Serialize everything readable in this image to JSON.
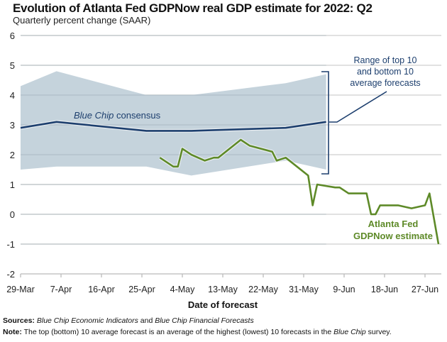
{
  "title": "Evolution of Atlanta Fed GDPNow real GDP estimate for 2022: Q2",
  "subtitle": "Quarterly percent change (SAAR)",
  "footer": {
    "sources_label": "Sources:",
    "sources_text_1": "Blue Chip Economic Indicators",
    "sources_and": " and ",
    "sources_text_2": "Blue Chip Financial Forecasts",
    "note_label": "Note:",
    "note_text_1": " The top (bottom) 10 average forecast is an average of the highest (lowest) 10 forecasts in the ",
    "note_italic": "Blue Chip",
    "note_text_2": " survey."
  },
  "chart_data": {
    "type": "line",
    "title": "Evolution of Atlanta Fed GDPNow real GDP estimate for 2022: Q2",
    "ylabel": "Quarterly percent change (SAAR)",
    "xlabel": "Date of forecast",
    "ylim": [
      -2,
      6
    ],
    "yticks": [
      -2,
      -1,
      0,
      1,
      2,
      3,
      4,
      5,
      6
    ],
    "x_unit": "days since 29-Mar-2022",
    "xlim": [
      0,
      94
    ],
    "xticks": [
      {
        "day": 0,
        "label": "29-Mar"
      },
      {
        "day": 9,
        "label": "7-Apr"
      },
      {
        "day": 18,
        "label": "16-Apr"
      },
      {
        "day": 27,
        "label": "25-Apr"
      },
      {
        "day": 36,
        "label": "4-May"
      },
      {
        "day": 45,
        "label": "13-May"
      },
      {
        "day": 54,
        "label": "22-May"
      },
      {
        "day": 63,
        "label": "31-May"
      },
      {
        "day": 72,
        "label": "9-Jun"
      },
      {
        "day": 81,
        "label": "18-Jun"
      },
      {
        "day": 90,
        "label": "27-Jun"
      }
    ],
    "grid": true,
    "series": [
      {
        "name": "Range of top 10 and bottom 10 average forecasts",
        "kind": "band",
        "color": "#c5d3dc",
        "x": [
          0,
          8,
          28,
          38,
          59,
          68
        ],
        "upper": [
          4.3,
          4.8,
          4.0,
          4.0,
          4.4,
          4.7
        ],
        "lower": [
          1.5,
          1.6,
          1.6,
          1.3,
          1.8,
          1.5
        ]
      },
      {
        "name": "Blue Chip consensus",
        "kind": "line",
        "color": "#1d3f6e",
        "x": [
          0,
          8,
          28,
          38,
          59,
          68
        ],
        "y": [
          2.9,
          3.1,
          2.8,
          2.8,
          2.9,
          3.1
        ]
      },
      {
        "name": "Atlanta Fed GDPNow estimate",
        "kind": "line",
        "color": "#5e8a28",
        "x": [
          31,
          34,
          35,
          36,
          38,
          41,
          43,
          44,
          49,
          51,
          56,
          57,
          59,
          64,
          65,
          66,
          70,
          71,
          73,
          74,
          77,
          78,
          79,
          80,
          84,
          87,
          90,
          91,
          93
        ],
        "y": [
          1.9,
          1.6,
          1.6,
          2.2,
          2.0,
          1.8,
          1.9,
          1.9,
          2.5,
          2.3,
          2.1,
          1.8,
          1.9,
          1.3,
          0.3,
          1.0,
          0.9,
          0.9,
          0.7,
          0.7,
          0.7,
          0.0,
          0.0,
          0.3,
          0.3,
          0.2,
          0.3,
          0.7,
          -1.0
        ]
      }
    ],
    "annotations": [
      {
        "text": "Blue Chip consensus",
        "italic_part": "Blue Chip",
        "series": "Blue Chip consensus"
      },
      {
        "text": [
          "Range of top 10",
          "and bottom 10",
          "average forecasts"
        ],
        "series": "Range of top 10 and bottom 10 average forecasts"
      },
      {
        "text": [
          "Atlanta Fed",
          "GDPNow estimate"
        ],
        "series": "Atlanta Fed GDPNow estimate"
      }
    ]
  }
}
